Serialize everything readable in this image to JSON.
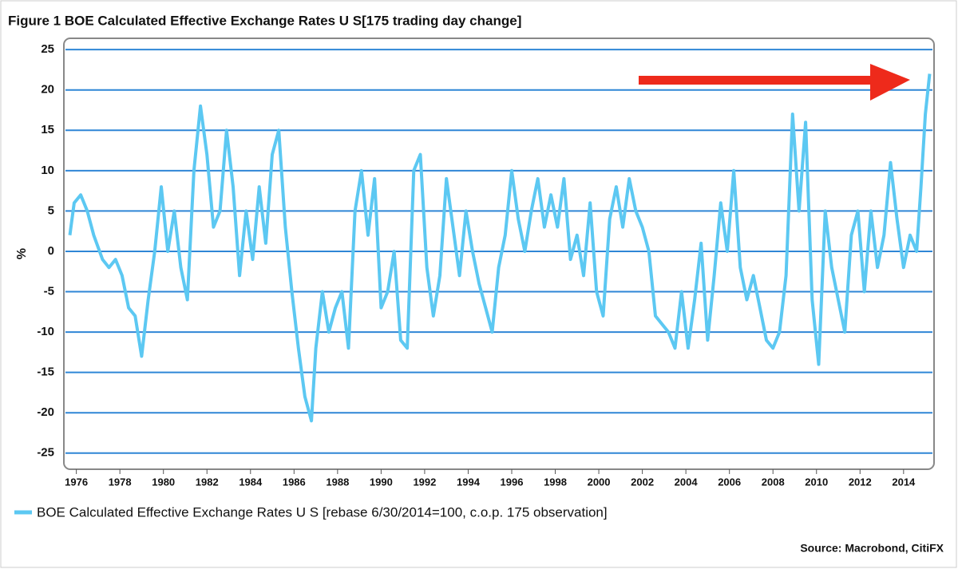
{
  "chart_data": {
    "type": "line",
    "title": "Figure 1 BOE Calculated Effective Exchange Rates U S[175 trading day change]",
    "y_label": "%",
    "source": "Source: Macrobond, CitiFX",
    "xlim": [
      1975.5,
      2015.4
    ],
    "xticks": [
      1976,
      1978,
      1980,
      1982,
      1984,
      1986,
      1988,
      1990,
      1992,
      1994,
      1996,
      1998,
      2000,
      2002,
      2004,
      2006,
      2008,
      2010,
      2012,
      2014
    ],
    "ylim": [
      -27,
      26.2
    ],
    "yticks": [
      -25,
      -20,
      -15,
      -10,
      -5,
      0,
      5,
      10,
      15,
      20,
      25
    ],
    "grid": true,
    "x": [
      1975.7,
      1975.9,
      1976.2,
      1976.5,
      1976.8,
      1977.2,
      1977.5,
      1977.8,
      1978.1,
      1978.4,
      1978.7,
      1979.0,
      1979.3,
      1979.6,
      1979.9,
      1980.2,
      1980.5,
      1980.8,
      1981.1,
      1981.4,
      1981.7,
      1982.0,
      1982.3,
      1982.6,
      1982.9,
      1983.2,
      1983.5,
      1983.8,
      1984.1,
      1984.4,
      1984.7,
      1985.0,
      1985.3,
      1985.6,
      1985.9,
      1986.2,
      1986.5,
      1986.8,
      1987.0,
      1987.3,
      1987.6,
      1987.9,
      1988.2,
      1988.5,
      1988.8,
      1989.1,
      1989.4,
      1989.7,
      1990.0,
      1990.3,
      1990.6,
      1990.9,
      1991.2,
      1991.5,
      1991.8,
      1992.1,
      1992.4,
      1992.7,
      1993.0,
      1993.3,
      1993.6,
      1993.9,
      1994.2,
      1994.5,
      1994.8,
      1995.1,
      1995.4,
      1995.7,
      1996.0,
      1996.3,
      1996.6,
      1996.9,
      1997.2,
      1997.5,
      1997.8,
      1998.1,
      1998.4,
      1998.7,
      1999.0,
      1999.3,
      1999.6,
      1999.9,
      2000.2,
      2000.5,
      2000.8,
      2001.1,
      2001.4,
      2001.7,
      2002.0,
      2002.3,
      2002.6,
      2002.9,
      2003.2,
      2003.5,
      2003.8,
      2004.1,
      2004.4,
      2004.7,
      2005.0,
      2005.3,
      2005.6,
      2005.9,
      2006.2,
      2006.5,
      2006.8,
      2007.1,
      2007.4,
      2007.7,
      2008.0,
      2008.3,
      2008.6,
      2008.9,
      2009.2,
      2009.5,
      2009.8,
      2010.1,
      2010.4,
      2010.7,
      2011.0,
      2011.3,
      2011.6,
      2011.9,
      2012.2,
      2012.5,
      2012.8,
      2013.1,
      2013.4,
      2013.7,
      2014.0,
      2014.3,
      2014.6,
      2014.8,
      2015.0,
      2015.2
    ],
    "series": [
      {
        "name": "BOE Calculated Effective Exchange Rates U S [rebase 6/30/2014=100, c.o.p. 175 observation]",
        "color": "#5cc8f2",
        "values": [
          2,
          6,
          7,
          5,
          2,
          -1,
          -2,
          -1,
          -3,
          -7,
          -8,
          -13,
          -6,
          0,
          8,
          0,
          5,
          -2,
          -6,
          10,
          18,
          12,
          3,
          5,
          15,
          8,
          -3,
          5,
          -1,
          8,
          1,
          12,
          15,
          3,
          -5,
          -12,
          -18,
          -21,
          -12,
          -5,
          -10,
          -7,
          -5,
          -12,
          5,
          10,
          2,
          9,
          -7,
          -5,
          0,
          -11,
          -12,
          10,
          12,
          -2,
          -8,
          -3,
          9,
          3,
          -3,
          5,
          0,
          -4,
          -7,
          -10,
          -2,
          2,
          10,
          4,
          0,
          5,
          9,
          3,
          7,
          3,
          9,
          -1,
          2,
          -3,
          6,
          -5,
          -8,
          4,
          8,
          3,
          9,
          5,
          3,
          0,
          -8,
          -9,
          -10,
          -12,
          -5,
          -12,
          -6,
          1,
          -11,
          -3,
          6,
          0,
          10,
          -2,
          -6,
          -3,
          -7,
          -11,
          -12,
          -10,
          -3,
          17,
          5,
          16,
          -6,
          -14,
          5,
          -2,
          -6,
          -10,
          2,
          5,
          -5,
          5,
          -2,
          2,
          11,
          4,
          -2,
          2,
          0,
          8,
          17,
          22
        ]
      }
    ]
  }
}
